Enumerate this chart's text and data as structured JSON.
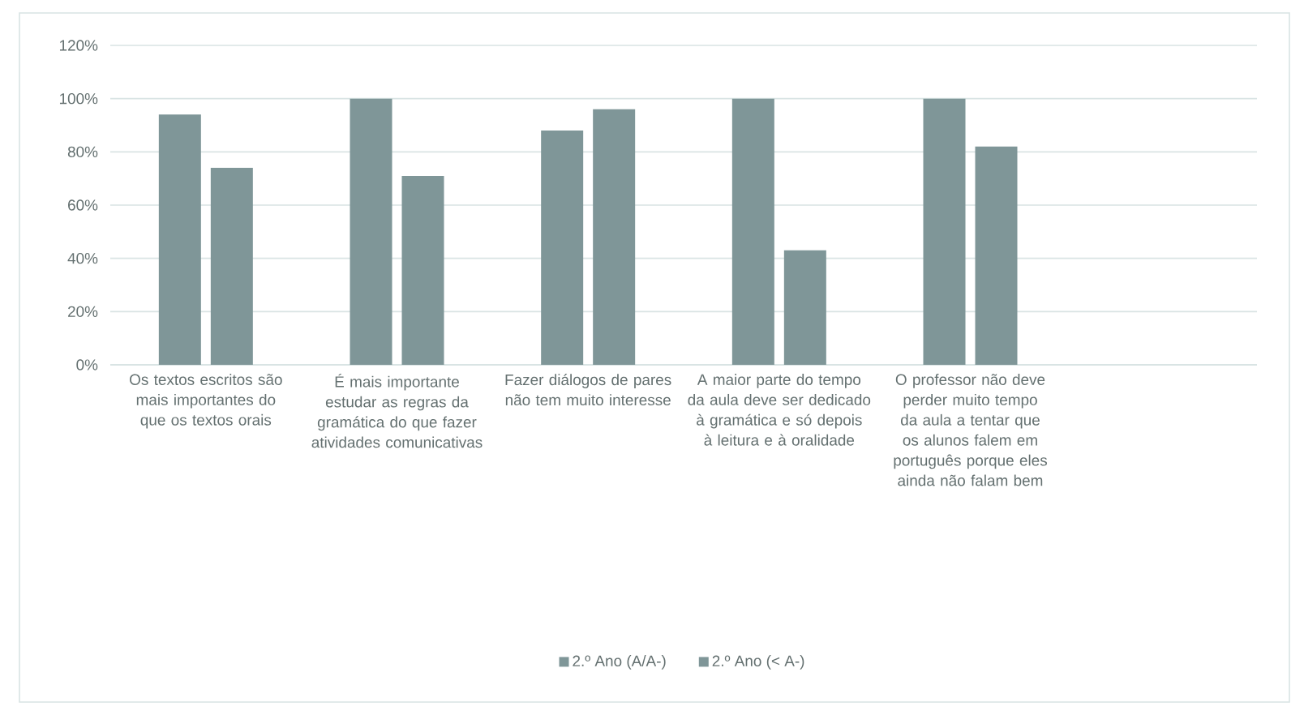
{
  "chart_data": {
    "type": "bar",
    "categories": [
      "Os textos escritos são mais importantes do que os textos orais",
      "É mais importante estudar as regras da gramática do que fazer atividades comunicativas",
      "Fazer diálogos de pares não tem muito interesse",
      "A maior parte do tempo da aula deve ser dedicado à gramática e só depois à leitura e à oralidade",
      "O professor não deve perder muito tempo da aula a tentar que os alunos falem em português porque eles ainda não falam bem",
      null
    ],
    "series": [
      {
        "name": "2.º Ano (A/A-)",
        "color": "#7f9698",
        "values": [
          94,
          100,
          88,
          100,
          100,
          null
        ]
      },
      {
        "name": "2.º Ano (< A-)",
        "color": "#7f9698",
        "values": [
          74,
          71,
          96,
          43,
          82,
          null
        ]
      }
    ],
    "ylim": [
      0,
      120
    ],
    "yticks": [
      {
        "value": 0,
        "label": "0%"
      },
      {
        "value": 20,
        "label": "20%"
      },
      {
        "value": 40,
        "label": "40%"
      },
      {
        "value": 60,
        "label": "60%"
      },
      {
        "value": 80,
        "label": "80%"
      },
      {
        "value": 100,
        "label": "100%"
      },
      {
        "value": 120,
        "label": "120%"
      }
    ],
    "grid": "y",
    "legend": "bottom"
  }
}
